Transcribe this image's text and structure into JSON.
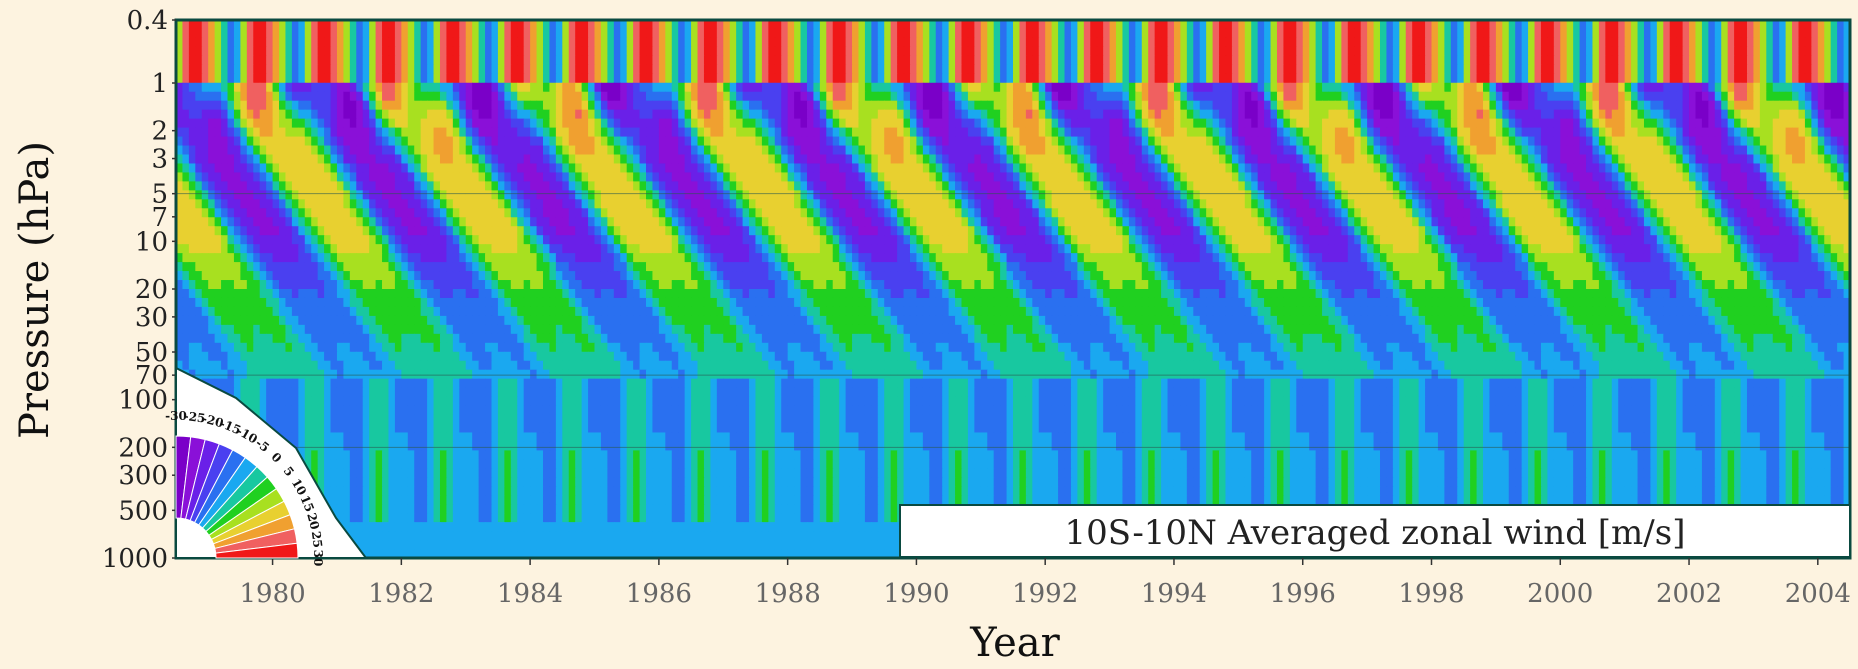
{
  "chart_data": {
    "type": "heatmap",
    "title": "10S-10N Averaged zonal wind [m/s]",
    "xlabel": "Year",
    "ylabel": "Pressure (hPa)",
    "x_range": [
      1979,
      2005
    ],
    "y_range": [
      1000,
      0.4
    ],
    "y_scale": "log",
    "x_ticks": [
      "1980",
      "1982",
      "1984",
      "1986",
      "1988",
      "1990",
      "1992",
      "1994",
      "1996",
      "1998",
      "2000",
      "2002",
      "2004"
    ],
    "y_ticks": [
      "0.4",
      "1",
      "2",
      "3",
      "5",
      "7",
      "10",
      "20",
      "30",
      "50",
      "70",
      "100",
      "200",
      "300",
      "500",
      "1000"
    ],
    "qbo_period_months": 28,
    "contour_levels": [
      -30,
      -25,
      -20,
      -15,
      -10,
      -5,
      0,
      5,
      10,
      15,
      20,
      25,
      30
    ],
    "colorbar_labels": [
      "-30",
      "-25",
      "-20",
      "-15",
      "-10",
      "-5",
      "0",
      "5",
      "10",
      "15",
      "20",
      "25",
      "30"
    ],
    "colors": [
      "#7a00c8",
      "#8a10d8",
      "#6a20e8",
      "#4a40f0",
      "#2a70f0",
      "#1aa8f0",
      "#18c8a0",
      "#20d020",
      "#a8e020",
      "#e8d030",
      "#f0a030",
      "#f06060",
      "#f01818"
    ],
    "legend_placement": "bottom-right",
    "grid": false
  }
}
